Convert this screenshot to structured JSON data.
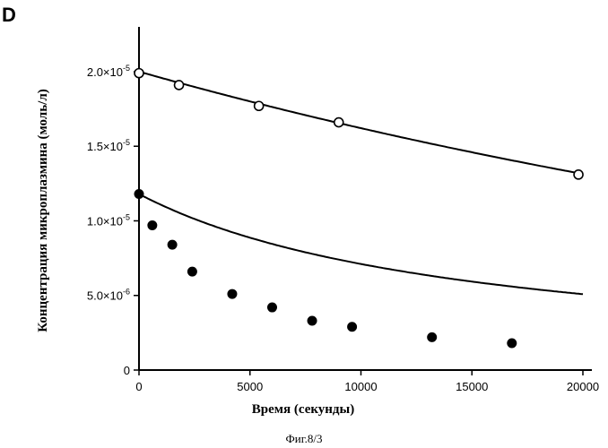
{
  "chart_data": {
    "type": "scatter",
    "panel_label": "D",
    "caption": "Фиг.8/3",
    "xlabel": "Время (секунды)",
    "ylabel": "Концентрация микроплазмина (моль/л)",
    "xlim": [
      0,
      20000
    ],
    "ylim": [
      0,
      2.3e-05
    ],
    "x_ticks": [
      {
        "value": 0,
        "label": "0"
      },
      {
        "value": 5000,
        "label": "5000"
      },
      {
        "value": 10000,
        "label": "10000"
      },
      {
        "value": 15000,
        "label": "15000"
      },
      {
        "value": 20000,
        "label": "20000"
      }
    ],
    "y_ticks": [
      {
        "value": 0,
        "mant": "0",
        "exp": ""
      },
      {
        "value": 5e-06,
        "mant": "5.0×10",
        "exp": "-6"
      },
      {
        "value": 1e-05,
        "mant": "1.0×10",
        "exp": "-5"
      },
      {
        "value": 1.5e-05,
        "mant": "1.5×10",
        "exp": "-5"
      },
      {
        "value": 2e-05,
        "mant": "2.0×10",
        "exp": "-5"
      }
    ],
    "series": [
      {
        "marker": "open-circle",
        "points": [
          {
            "x": 0,
            "y": 1.99e-05
          },
          {
            "x": 1800,
            "y": 1.91e-05
          },
          {
            "x": 5400,
            "y": 1.77e-05
          },
          {
            "x": 9000,
            "y": 1.66e-05
          },
          {
            "x": 19800,
            "y": 1.31e-05
          }
        ],
        "fit": {
          "model": "exponential",
          "y0": 2e-05,
          "k": 2.1e-05
        }
      },
      {
        "marker": "filled-circle",
        "points": [
          {
            "x": 0,
            "y": 1.18e-05
          },
          {
            "x": 600,
            "y": 9.7e-06
          },
          {
            "x": 1500,
            "y": 8.4e-06
          },
          {
            "x": 2400,
            "y": 6.6e-06
          },
          {
            "x": 4200,
            "y": 5.1e-06
          },
          {
            "x": 6000,
            "y": 4.2e-06
          },
          {
            "x": 7800,
            "y": 3.3e-06
          },
          {
            "x": 9600,
            "y": 2.9e-06
          },
          {
            "x": 13200,
            "y": 2.2e-06
          },
          {
            "x": 16800,
            "y": 1.8e-06
          }
        ],
        "fit": {
          "model": "second-order",
          "y0": 1.18e-05,
          "kc": 6.6e-05
        }
      }
    ]
  }
}
